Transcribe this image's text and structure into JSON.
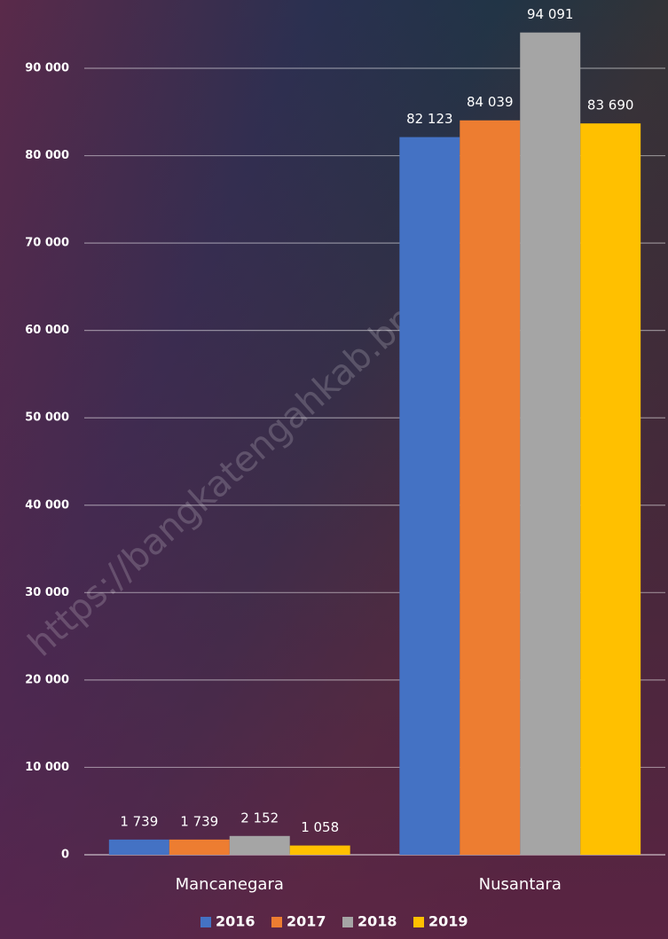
{
  "chart_data": {
    "type": "bar",
    "categories": [
      "Mancanegara",
      "Nusantara"
    ],
    "series": [
      {
        "name": "2016",
        "color": "#4472c4",
        "values": [
          1739,
          82123
        ],
        "value_labels": [
          "1 739",
          "82 123"
        ]
      },
      {
        "name": "2017",
        "color": "#ed7d31",
        "values": [
          1739,
          84039
        ],
        "value_labels": [
          "1 739",
          "84 039"
        ]
      },
      {
        "name": "2018",
        "color": "#a5a5a5",
        "values": [
          2152,
          94091
        ],
        "value_labels": [
          "2 152",
          "94 091"
        ]
      },
      {
        "name": "2019",
        "color": "#ffc000",
        "values": [
          1058,
          83690
        ],
        "value_labels": [
          "1 058",
          "83 690"
        ]
      }
    ],
    "ylim": [
      0,
      97000
    ],
    "yticks": [
      0,
      {
        "value": 10000,
        "label": "10 000"
      },
      {
        "value": 20000,
        "label": "20 000"
      },
      {
        "value": 30000,
        "label": "30 000"
      },
      {
        "value": 40000,
        "label": "40 000"
      },
      {
        "value": 50000,
        "label": "50 000"
      },
      {
        "value": 60000,
        "label": "60 000"
      },
      {
        "value": 70000,
        "label": "70 000"
      },
      {
        "value": 80000,
        "label": "80 000"
      },
      {
        "value": 90000,
        "label": "90 000"
      }
    ],
    "grid": true,
    "legend": "bottom",
    "watermark": "https://bangkatengahkab.bps.go.id"
  }
}
